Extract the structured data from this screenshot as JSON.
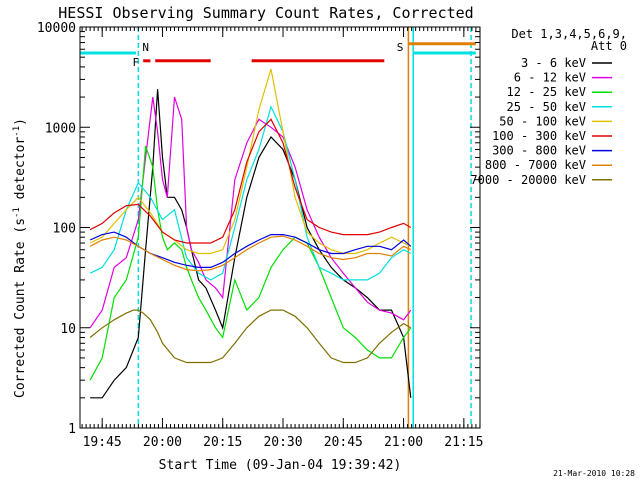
{
  "chart_data": {
    "type": "line",
    "title": "HESSI Observing Summary Count Rates, Corrected",
    "xlabel": "Start Time (09-Jan-04 19:39:42)",
    "ylabel": "Corrected Count Rate (s",
    "ylabel_sup": "-1",
    "ylabel_tail": " detector",
    "ylabel_end": ")",
    "yscale": "log",
    "ylim": [
      1,
      10000
    ],
    "xlim": [
      19.658,
      21.317
    ],
    "y_ticks": [
      {
        "value": 1,
        "label": "1"
      },
      {
        "value": 10,
        "label": "10"
      },
      {
        "value": 100,
        "label": "100"
      },
      {
        "value": 1000,
        "label": "1000"
      },
      {
        "value": 10000,
        "label": "10000"
      }
    ],
    "x_ticks": [
      {
        "value": 19.75,
        "label": "19:45"
      },
      {
        "value": 20.0,
        "label": "20:00"
      },
      {
        "value": 20.25,
        "label": "20:15"
      },
      {
        "value": 20.5,
        "label": "20:30"
      },
      {
        "value": 20.75,
        "label": "20:45"
      },
      {
        "value": 21.0,
        "label": "21:00"
      },
      {
        "value": 21.25,
        "label": "21:15"
      }
    ],
    "legend_header": [
      "Det 1,3,4,5,6,9,",
      "Att 0"
    ],
    "legend_placement": "right",
    "timestamp": "21-Mar-2010 10:28",
    "series": [
      {
        "name": "3 - 6 keV",
        "color": "#000000",
        "x": [
          19.7,
          19.75,
          19.8,
          19.85,
          19.9,
          19.93,
          19.96,
          19.98,
          20.0,
          20.02,
          20.05,
          20.08,
          20.1,
          20.12,
          20.15,
          20.18,
          20.22,
          20.25,
          20.3,
          20.35,
          20.4,
          20.45,
          20.5,
          20.55,
          20.6,
          20.65,
          20.7,
          20.75,
          20.8,
          20.85,
          20.9,
          20.95,
          21.0,
          21.03
        ],
        "y": [
          2,
          2,
          3,
          4,
          8,
          60,
          400,
          2400,
          500,
          200,
          200,
          150,
          100,
          60,
          30,
          25,
          15,
          10,
          50,
          200,
          500,
          800,
          600,
          300,
          100,
          60,
          40,
          30,
          25,
          20,
          15,
          15,
          8,
          2
        ]
      },
      {
        "name": "6 - 12 keV",
        "color": "#e000e0",
        "x": [
          19.7,
          19.75,
          19.8,
          19.85,
          19.9,
          19.93,
          19.96,
          19.98,
          20.0,
          20.02,
          20.05,
          20.08,
          20.1,
          20.12,
          20.15,
          20.18,
          20.22,
          20.25,
          20.3,
          20.35,
          20.4,
          20.45,
          20.5,
          20.55,
          20.6,
          20.65,
          20.7,
          20.75,
          20.8,
          20.85,
          20.9,
          20.95,
          21.0,
          21.03
        ],
        "y": [
          10,
          15,
          40,
          50,
          120,
          500,
          2000,
          900,
          300,
          200,
          2000,
          1200,
          100,
          60,
          45,
          30,
          25,
          20,
          300,
          700,
          1200,
          1000,
          800,
          400,
          150,
          80,
          50,
          35,
          25,
          18,
          15,
          14,
          12,
          15
        ]
      },
      {
        "name": "12 - 25 keV",
        "color": "#00e000",
        "x": [
          19.7,
          19.75,
          19.8,
          19.85,
          19.9,
          19.93,
          19.96,
          19.98,
          20.0,
          20.02,
          20.05,
          20.08,
          20.1,
          20.12,
          20.15,
          20.18,
          20.22,
          20.25,
          20.3,
          20.35,
          20.4,
          20.45,
          20.5,
          20.55,
          20.6,
          20.65,
          20.7,
          20.75,
          20.8,
          20.85,
          20.9,
          20.95,
          21.0,
          21.03
        ],
        "y": [
          3,
          5,
          20,
          30,
          80,
          650,
          400,
          150,
          80,
          60,
          70,
          60,
          40,
          30,
          20,
          15,
          10,
          8,
          30,
          15,
          20,
          40,
          60,
          80,
          70,
          40,
          20,
          10,
          8,
          6,
          5,
          5,
          8,
          10
        ]
      },
      {
        "name": "25 - 50 keV",
        "color": "#00e0e0",
        "x": [
          19.7,
          19.75,
          19.8,
          19.85,
          19.9,
          19.95,
          20.0,
          20.05,
          20.1,
          20.15,
          20.2,
          20.25,
          20.3,
          20.35,
          20.4,
          20.45,
          20.5,
          20.55,
          20.6,
          20.65,
          20.7,
          20.75,
          20.8,
          20.85,
          20.9,
          20.95,
          21.0,
          21.03
        ],
        "y": [
          35,
          40,
          60,
          150,
          280,
          200,
          120,
          150,
          50,
          35,
          30,
          35,
          100,
          300,
          600,
          1600,
          900,
          300,
          80,
          40,
          35,
          30,
          30,
          30,
          35,
          50,
          60,
          55
        ]
      },
      {
        "name": "50 - 100 keV",
        "color": "#e0c000",
        "x": [
          19.7,
          19.75,
          19.8,
          19.85,
          19.9,
          19.95,
          20.0,
          20.05,
          20.1,
          20.15,
          20.2,
          20.25,
          20.3,
          20.35,
          20.4,
          20.45,
          20.5,
          20.55,
          20.6,
          20.65,
          20.7,
          20.75,
          20.8,
          20.85,
          20.9,
          20.95,
          21.0,
          21.03
        ],
        "y": [
          70,
          80,
          110,
          150,
          200,
          140,
          90,
          75,
          60,
          55,
          55,
          60,
          120,
          400,
          1500,
          3800,
          900,
          200,
          90,
          70,
          60,
          55,
          55,
          60,
          70,
          80,
          70,
          65
        ]
      },
      {
        "name": "100 - 300 keV",
        "color": "#e00000",
        "x": [
          19.7,
          19.75,
          19.8,
          19.85,
          19.9,
          19.95,
          20.0,
          20.05,
          20.1,
          20.15,
          20.2,
          20.25,
          20.3,
          20.35,
          20.4,
          20.45,
          20.5,
          20.55,
          20.6,
          20.65,
          20.7,
          20.75,
          20.8,
          20.85,
          20.9,
          20.95,
          21.0,
          21.03
        ],
        "y": [
          95,
          110,
          140,
          165,
          170,
          130,
          90,
          75,
          70,
          70,
          70,
          80,
          150,
          450,
          900,
          1200,
          700,
          250,
          120,
          100,
          90,
          85,
          85,
          85,
          90,
          100,
          110,
          100
        ]
      },
      {
        "name": "300 - 800 keV",
        "color": "#0000e0",
        "x": [
          19.7,
          19.75,
          19.8,
          19.85,
          19.9,
          19.95,
          20.0,
          20.05,
          20.1,
          20.15,
          20.2,
          20.25,
          20.3,
          20.35,
          20.4,
          20.45,
          20.5,
          20.55,
          20.6,
          20.65,
          20.7,
          20.75,
          20.8,
          20.85,
          20.9,
          20.95,
          21.0,
          21.03
        ],
        "y": [
          75,
          85,
          90,
          80,
          65,
          55,
          50,
          45,
          42,
          40,
          40,
          45,
          55,
          65,
          75,
          85,
          85,
          80,
          70,
          60,
          55,
          55,
          60,
          65,
          65,
          60,
          75,
          65
        ]
      },
      {
        "name": "800 - 7000 keV",
        "color": "#e08000",
        "x": [
          19.7,
          19.75,
          19.8,
          19.85,
          19.9,
          19.95,
          20.0,
          20.05,
          20.1,
          20.15,
          20.2,
          20.25,
          20.3,
          20.35,
          20.4,
          20.45,
          20.5,
          20.55,
          20.6,
          20.65,
          20.7,
          20.75,
          20.8,
          20.85,
          20.9,
          20.95,
          21.0,
          21.03
        ],
        "y": [
          65,
          75,
          80,
          75,
          65,
          55,
          48,
          42,
          38,
          37,
          38,
          42,
          50,
          60,
          70,
          80,
          82,
          75,
          65,
          55,
          50,
          48,
          50,
          55,
          55,
          52,
          65,
          60
        ]
      },
      {
        "name": "7000 - 20000 keV",
        "color": "#807000",
        "x": [
          19.7,
          19.75,
          19.8,
          19.85,
          19.88,
          19.9,
          19.92,
          19.95,
          19.98,
          20.0,
          20.05,
          20.1,
          20.15,
          20.2,
          20.25,
          20.3,
          20.35,
          20.4,
          20.45,
          20.5,
          20.55,
          20.6,
          20.65,
          20.7,
          20.75,
          20.8,
          20.85,
          20.9,
          20.95,
          21.0,
          21.03
        ],
        "y": [
          8,
          10,
          12,
          14,
          15,
          15,
          14,
          12,
          9,
          7,
          5,
          4.5,
          4.5,
          4.5,
          5,
          7,
          10,
          13,
          15,
          15,
          13,
          10,
          7,
          5,
          4.5,
          4.5,
          5,
          7,
          9,
          11,
          10
        ]
      }
    ],
    "markers": [
      {
        "label": "N",
        "kind": "vline",
        "x": 19.9,
        "color": "#00e0e0",
        "dashed": true
      },
      {
        "label": "",
        "kind": "vline",
        "x": 21.04,
        "color": "#00e0e0",
        "dashed": false
      },
      {
        "label": "",
        "kind": "vline",
        "x": 21.28,
        "color": "#00e0e0",
        "dashed": true
      },
      {
        "label": "S",
        "kind": "vline",
        "x": 21.02,
        "color": "#e08000",
        "dashed": false
      },
      {
        "label": "",
        "kind": "hbar",
        "x0": 19.66,
        "x1": 19.89,
        "y": 5500,
        "color": "#00e0e0"
      },
      {
        "label": "",
        "kind": "hbar",
        "x0": 21.04,
        "x1": 21.3,
        "y": 5500,
        "color": "#00e0e0"
      },
      {
        "label": "",
        "kind": "hbar",
        "x0": 21.02,
        "x1": 21.3,
        "y": 6800,
        "color": "#e08000"
      },
      {
        "label": "F",
        "kind": "hbar",
        "x0": 19.92,
        "x1": 19.95,
        "y": 4600,
        "color": "#e00000"
      },
      {
        "label": "",
        "kind": "hbar",
        "x0": 19.97,
        "x1": 20.2,
        "y": 4600,
        "color": "#e00000"
      },
      {
        "label": "",
        "kind": "hbar",
        "x0": 20.37,
        "x1": 20.92,
        "y": 4600,
        "color": "#e00000"
      }
    ]
  }
}
